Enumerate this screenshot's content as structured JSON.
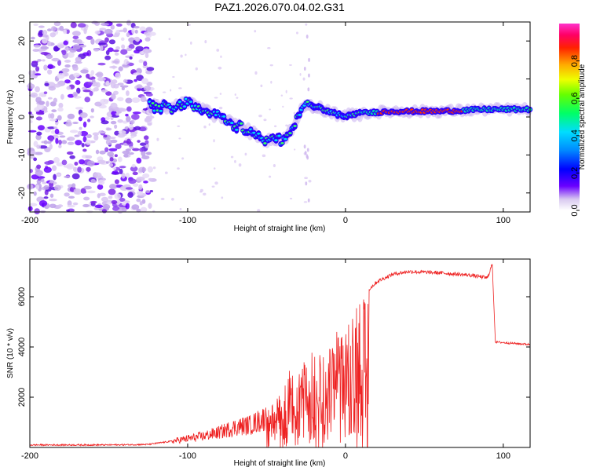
{
  "title": "PAZ1.2026.070.04.02.G31",
  "chart_data": [
    {
      "type": "heatmap",
      "name": "spectrogram",
      "xlabel": "Height of straight line (km)",
      "ylabel": "Frequency (Hz)",
      "xlim": [
        -200,
        117
      ],
      "ylim": [
        -25,
        25
      ],
      "xticks": [
        -200,
        -100,
        0,
        100
      ],
      "yticks": [
        -20,
        -10,
        0,
        10,
        20
      ],
      "colorbar": {
        "label": "Normalized spectral amplitude",
        "range": [
          0,
          1
        ],
        "ticks": [
          0.0,
          0.2,
          0.4,
          0.6,
          0.8
        ]
      },
      "ridge": {
        "description_points": [
          {
            "x": -124,
            "y": 3
          },
          {
            "x": -110,
            "y": 2.5
          },
          {
            "x": -100,
            "y": 4
          },
          {
            "x": -90,
            "y": 2
          },
          {
            "x": -80,
            "y": 0
          },
          {
            "x": -70,
            "y": -2
          },
          {
            "x": -60,
            "y": -4
          },
          {
            "x": -50,
            "y": -6
          },
          {
            "x": -40,
            "y": -6
          },
          {
            "x": -33,
            "y": -3
          },
          {
            "x": -27,
            "y": 3
          },
          {
            "x": -20,
            "y": 3
          },
          {
            "x": -10,
            "y": 1.5
          },
          {
            "x": 0,
            "y": 0
          },
          {
            "x": 10,
            "y": 1
          },
          {
            "x": 30,
            "y": 1.5
          },
          {
            "x": 60,
            "y": 1.5
          },
          {
            "x": 90,
            "y": 2
          },
          {
            "x": 117,
            "y": 2
          }
        ]
      }
    },
    {
      "type": "line",
      "name": "snr",
      "xlabel": "Height of straight line (km)",
      "ylabel": "SNR (10 * v/v)",
      "xlim": [
        -200,
        117
      ],
      "ylim": [
        0,
        7500
      ],
      "xticks": [
        -200,
        -100,
        0,
        100
      ],
      "yticks": [
        2000,
        4000,
        6000
      ],
      "color": "#ee2222",
      "envelope": [
        {
          "x": -200,
          "y": 100
        },
        {
          "x": -150,
          "y": 100
        },
        {
          "x": -125,
          "y": 120
        },
        {
          "x": -110,
          "y": 250
        },
        {
          "x": -100,
          "y": 350
        },
        {
          "x": -90,
          "y": 450
        },
        {
          "x": -80,
          "y": 600
        },
        {
          "x": -70,
          "y": 800
        },
        {
          "x": -60,
          "y": 900
        },
        {
          "x": -50,
          "y": 1200
        },
        {
          "x": -40,
          "y": 2500
        },
        {
          "x": -30,
          "y": 3500
        },
        {
          "x": -20,
          "y": 3800
        },
        {
          "x": -10,
          "y": 4200
        },
        {
          "x": 0,
          "y": 5000
        },
        {
          "x": 10,
          "y": 6000
        },
        {
          "x": 20,
          "y": 6600
        },
        {
          "x": 30,
          "y": 6900
        },
        {
          "x": 40,
          "y": 7000
        },
        {
          "x": 60,
          "y": 6950
        },
        {
          "x": 80,
          "y": 6850
        },
        {
          "x": 90,
          "y": 6750
        },
        {
          "x": 93,
          "y": 7300
        },
        {
          "x": 95,
          "y": 4200
        },
        {
          "x": 105,
          "y": 4150
        },
        {
          "x": 117,
          "y": 4100
        }
      ]
    }
  ]
}
